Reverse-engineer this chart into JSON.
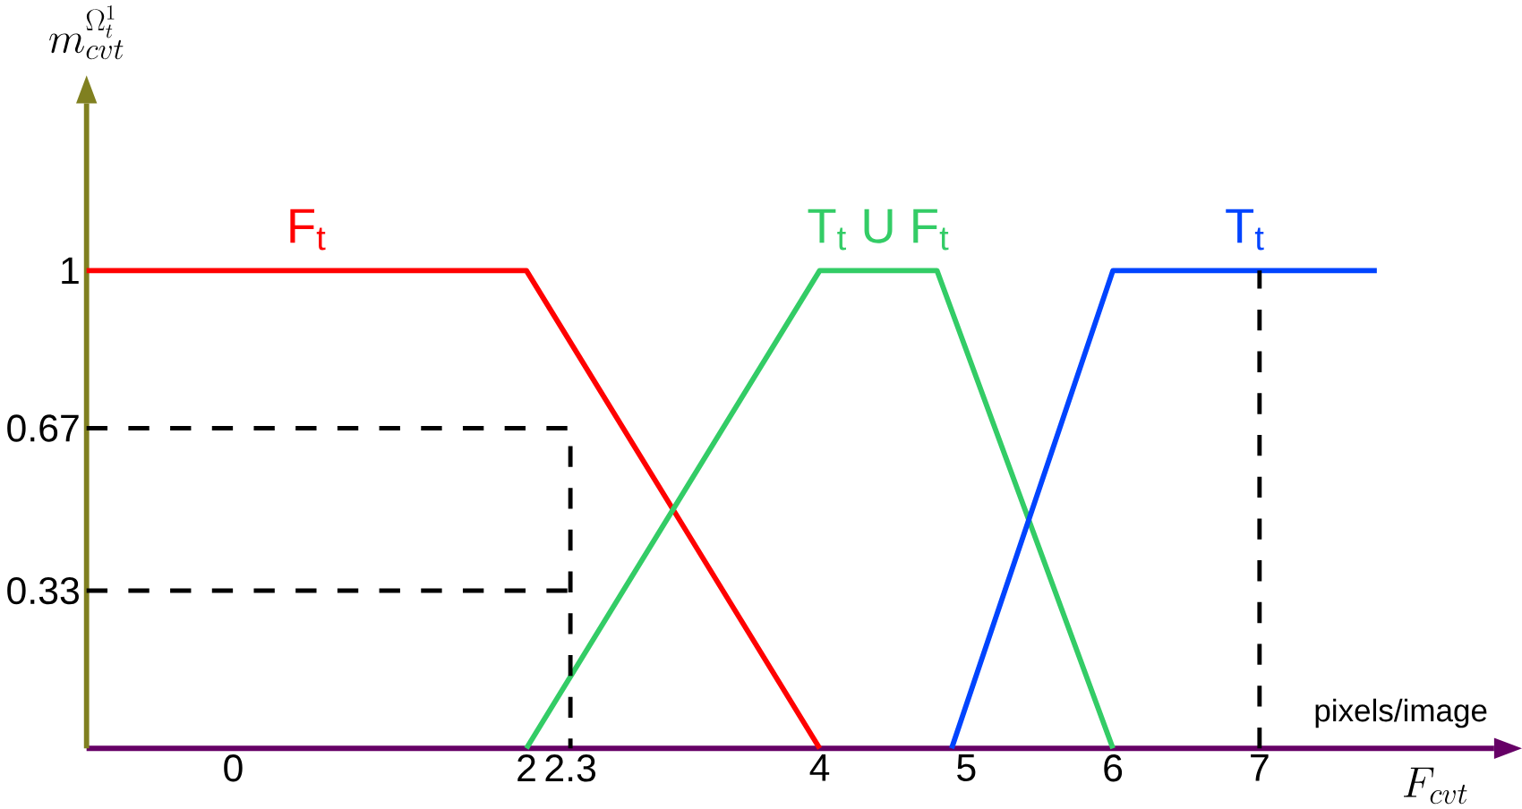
{
  "chart_data": {
    "type": "line",
    "xlabel": "F_{cvt}",
    "ylabel": "m_{cvt}^{\\Omega_t^1}",
    "xlim": [
      -1,
      8.6
    ],
    "ylim": [
      0,
      1.35
    ],
    "xticks": [
      0,
      2,
      2.3,
      4,
      5,
      6,
      7
    ],
    "yticks": [
      0.33,
      0.67,
      1
    ],
    "annotations": [
      "pixels/image"
    ],
    "series": [
      {
        "name": "F$_{t}$",
        "color": "#ff0000",
        "x": [
          -1,
          2,
          4
        ],
        "values": [
          1,
          1,
          0
        ]
      },
      {
        "name": "T$_{t}$ U F$_{t}$",
        "color": "#33cc66",
        "x": [
          2,
          4,
          4.8,
          6
        ],
        "values": [
          0,
          1,
          1,
          0
        ]
      },
      {
        "name": "T$_{t}$",
        "color": "#0044ff",
        "x": [
          4.9,
          6,
          7.8
        ],
        "values": [
          0,
          1,
          1
        ]
      },
      {
        "color": "#000000",
        "line_style": "dashed",
        "x": [
          -1,
          2.3,
          2.3
        ],
        "values": [
          0.67,
          0.67,
          0
        ]
      },
      {
        "color": "#000000",
        "line_style": "dashed",
        "x": [
          -1,
          2.3
        ],
        "values": [
          0.33,
          0.33
        ]
      },
      {
        "color": "#000000",
        "line_style": "dashed",
        "x": [
          7,
          7
        ],
        "values": [
          0,
          1
        ]
      }
    ]
  }
}
